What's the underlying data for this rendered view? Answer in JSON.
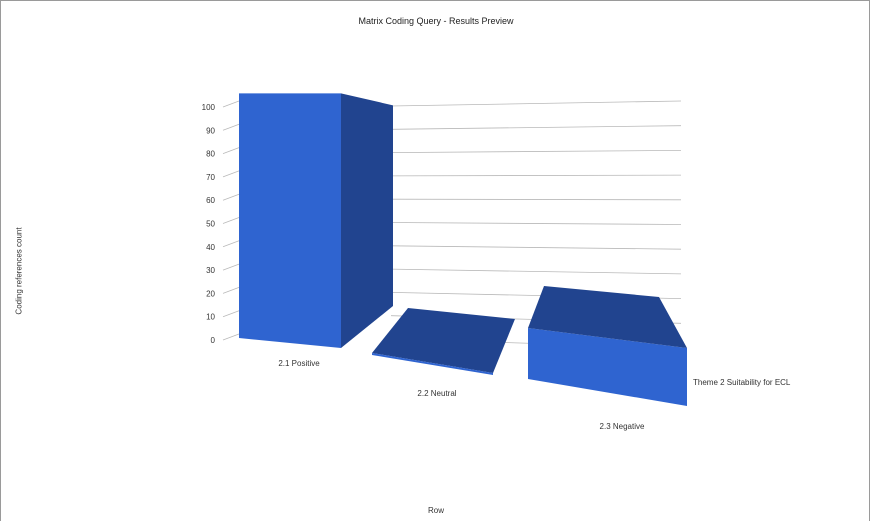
{
  "chart_data": {
    "type": "bar",
    "title": "Matrix Coding Query - Results Preview",
    "xlabel": "Row",
    "ylabel": "Coding references count",
    "categories": [
      "2.1 Positive",
      "2.2 Neutral",
      "2.3 Negative"
    ],
    "series": [
      {
        "name": "Theme 2 Suitability for ECL",
        "values": [
          100,
          0,
          21
        ]
      }
    ],
    "y_ticks": [
      0,
      10,
      20,
      30,
      40,
      50,
      60,
      70,
      80,
      90,
      100
    ],
    "ylim": [
      0,
      100
    ],
    "grid": true,
    "legend": "none",
    "style": "3d",
    "colors": {
      "front": "#2f64d0",
      "side": "#21448f",
      "top": "#2a55b4",
      "grid": "#b9b9b9"
    }
  }
}
